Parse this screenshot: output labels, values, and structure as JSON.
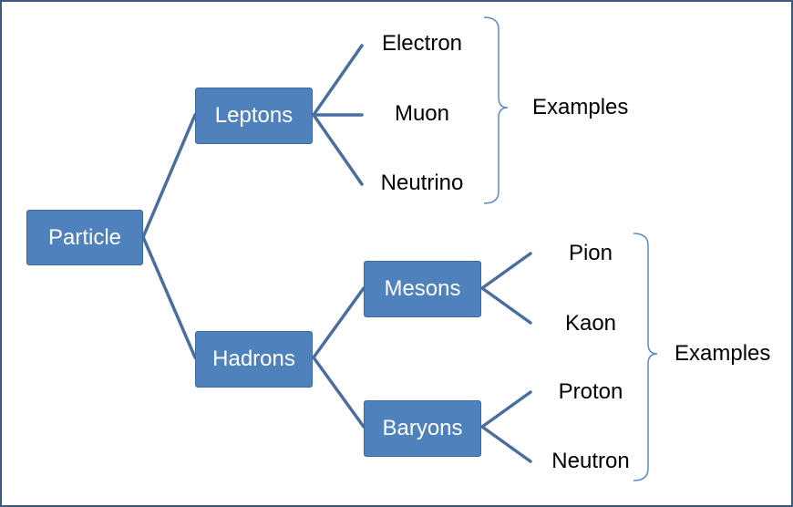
{
  "diagram": {
    "root": "Particle",
    "branches": {
      "leptons": "Leptons",
      "hadrons": "Hadrons",
      "mesons": "Mesons",
      "baryons": "Baryons"
    },
    "leaves": {
      "electron": "Electron",
      "muon": "Muon",
      "neutrino": "Neutrino",
      "pion": "Pion",
      "kaon": "Kaon",
      "proton": "Proton",
      "neutron": "Neutron"
    },
    "examples_label_1": "Examples",
    "examples_label_2": "Examples"
  },
  "colors": {
    "box_fill": "#4f81bd",
    "connector": "#4a6f9e",
    "brace": "#5b8ac4",
    "frame": "#3b5a82"
  }
}
